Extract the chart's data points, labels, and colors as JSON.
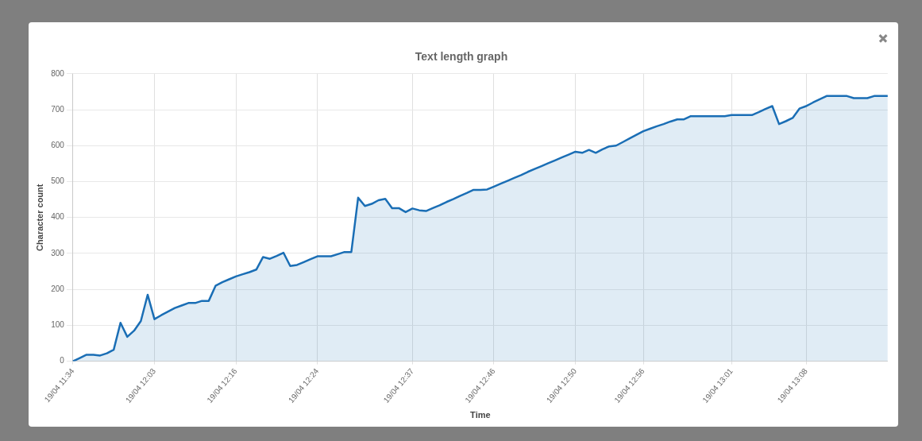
{
  "chart_data": {
    "type": "area",
    "title": "Text length graph",
    "xlabel": "Time",
    "ylabel": "Character count",
    "categories": [
      "19/04 11:34",
      null,
      null,
      null,
      null,
      null,
      null,
      null,
      null,
      null,
      null,
      null,
      "19/04 12:03",
      null,
      null,
      null,
      null,
      null,
      null,
      null,
      null,
      null,
      null,
      null,
      "19/04 12:16",
      null,
      null,
      null,
      null,
      null,
      null,
      null,
      null,
      null,
      null,
      null,
      "19/04 12:24",
      null,
      null,
      null,
      null,
      null,
      null,
      null,
      null,
      null,
      null,
      null,
      null,
      null,
      "19/04 12:37",
      null,
      null,
      null,
      null,
      null,
      null,
      null,
      null,
      null,
      null,
      null,
      "19/04 12:46",
      null,
      null,
      null,
      null,
      null,
      null,
      null,
      null,
      null,
      null,
      null,
      "19/04 12:50",
      null,
      null,
      null,
      null,
      null,
      null,
      null,
      null,
      null,
      "19/04 12:56",
      null,
      null,
      null,
      null,
      null,
      null,
      null,
      null,
      null,
      null,
      null,
      null,
      "19/04 13:01",
      null,
      null,
      null,
      null,
      null,
      null,
      null,
      null,
      null,
      null,
      "19/04 13:08",
      null,
      null,
      null,
      null,
      null,
      null,
      null,
      null,
      null,
      null,
      null,
      null
    ],
    "series": [
      {
        "color": "#1a6eb5",
        "values": [
          0,
          9,
          18,
          18,
          16,
          22,
          32,
          107,
          68,
          85,
          112,
          185,
          117,
          128,
          138,
          148,
          155,
          162,
          162,
          168,
          168,
          210,
          220,
          228,
          236,
          242,
          248,
          255,
          290,
          285,
          293,
          302,
          265,
          268,
          276,
          284,
          292,
          292,
          292,
          298,
          304,
          304,
          455,
          432,
          438,
          448,
          452,
          426,
          426,
          415,
          425,
          420,
          418,
          426,
          434,
          443,
          451,
          460,
          468,
          477,
          477,
          478,
          486,
          494,
          502,
          510,
          518,
          527,
          535,
          543,
          551,
          559,
          567,
          575,
          583,
          580,
          588,
          580,
          590,
          598,
          600,
          610,
          620,
          630,
          640,
          647,
          654,
          660,
          667,
          673,
          673,
          682,
          682,
          682,
          682,
          682,
          682,
          685,
          685,
          685,
          685,
          693,
          702,
          710,
          660,
          668,
          677,
          703,
          710,
          720,
          729,
          738,
          738,
          738,
          738,
          732,
          732,
          732,
          738,
          738,
          738
        ]
      }
    ],
    "ylim": [
      0,
      800
    ],
    "yticks": [
      0,
      100,
      200,
      300,
      400,
      500,
      600,
      700,
      800
    ],
    "grid": true,
    "legend": false,
    "marker": "none",
    "line_style": "solid"
  }
}
